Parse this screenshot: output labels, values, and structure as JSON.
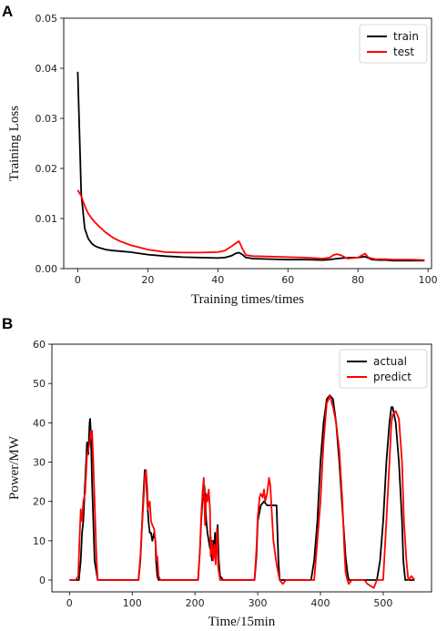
{
  "chart_data": [
    {
      "panel_label": "A",
      "type": "line",
      "xlabel": "Training times/times",
      "ylabel": "Training Loss",
      "xlim": [
        -4,
        101
      ],
      "ylim": [
        0,
        0.05
      ],
      "xticks": [
        0,
        20,
        40,
        60,
        80,
        100
      ],
      "yticks": [
        0.0,
        0.01,
        0.02,
        0.03,
        0.04,
        0.05
      ],
      "ytick_labels": [
        "0.00",
        "0.01",
        "0.02",
        "0.03",
        "0.04",
        "0.05"
      ],
      "legend": "top-right",
      "grid": false,
      "series": [
        {
          "name": "train",
          "color": "#000000",
          "x": [
            0,
            1,
            2,
            3,
            4,
            5,
            6,
            7,
            8,
            10,
            12,
            15,
            20,
            25,
            30,
            35,
            40,
            42,
            44,
            45,
            46,
            47,
            48,
            50,
            55,
            60,
            65,
            70,
            72,
            74,
            76,
            78,
            80,
            82,
            84,
            86,
            88,
            90,
            95,
            99
          ],
          "y": [
            0.0393,
            0.015,
            0.008,
            0.006,
            0.005,
            0.0045,
            0.0042,
            0.004,
            0.0038,
            0.0036,
            0.0035,
            0.0033,
            0.0028,
            0.0025,
            0.0023,
            0.0022,
            0.0021,
            0.0022,
            0.0026,
            0.003,
            0.0032,
            0.0028,
            0.0022,
            0.002,
            0.0019,
            0.0018,
            0.0018,
            0.0017,
            0.0018,
            0.002,
            0.0021,
            0.0022,
            0.0022,
            0.0024,
            0.0018,
            0.0017,
            0.0017,
            0.0016,
            0.0016,
            0.0016
          ]
        },
        {
          "name": "test",
          "color": "#ff0000",
          "x": [
            0,
            1,
            2,
            3,
            4,
            5,
            6,
            8,
            10,
            12,
            15,
            20,
            25,
            30,
            35,
            40,
            42,
            44,
            45,
            46,
            47,
            48,
            50,
            55,
            60,
            65,
            70,
            72,
            73,
            74,
            75,
            77,
            80,
            81,
            82,
            83,
            85,
            88,
            90,
            95,
            99
          ],
          "y": [
            0.0157,
            0.0145,
            0.0125,
            0.011,
            0.01,
            0.0092,
            0.0085,
            0.0072,
            0.0062,
            0.0055,
            0.0047,
            0.0038,
            0.0033,
            0.0032,
            0.0032,
            0.0033,
            0.0036,
            0.0045,
            0.005,
            0.0055,
            0.004,
            0.0027,
            0.0025,
            0.0024,
            0.0023,
            0.0022,
            0.002,
            0.0022,
            0.0027,
            0.0029,
            0.0027,
            0.002,
            0.0022,
            0.0026,
            0.003,
            0.0022,
            0.0019,
            0.0019,
            0.0018,
            0.0018,
            0.0017
          ]
        }
      ]
    },
    {
      "panel_label": "B",
      "type": "line",
      "xlabel": "Time/15min",
      "ylabel": "Power/MW",
      "xlim": [
        -28,
        577
      ],
      "ylim": [
        -3,
        60
      ],
      "xticks": [
        0,
        100,
        200,
        300,
        400,
        500
      ],
      "yticks": [
        0,
        10,
        20,
        30,
        40,
        50,
        60
      ],
      "ytick_labels": [
        "0",
        "10",
        "20",
        "30",
        "40",
        "50",
        "60"
      ],
      "legend": "top-right",
      "grid": false,
      "series": [
        {
          "name": "actual",
          "color": "#000000",
          "x": [
            0,
            15,
            18,
            20,
            22,
            25,
            28,
            30,
            32,
            33,
            34,
            35,
            36,
            38,
            40,
            45,
            100,
            110,
            113,
            115,
            118,
            120,
            122,
            124,
            126,
            128,
            130,
            132,
            135,
            137,
            138,
            140,
            142,
            145,
            200,
            205,
            208,
            210,
            212,
            215,
            218,
            220,
            222,
            224,
            225,
            227,
            229,
            230,
            232,
            234,
            236,
            238,
            240,
            245,
            290,
            295,
            298,
            300,
            305,
            310,
            315,
            320,
            325,
            330,
            333,
            335,
            340,
            385,
            390,
            395,
            400,
            405,
            410,
            415,
            420,
            425,
            430,
            435,
            440,
            443,
            445,
            450,
            490,
            495,
            500,
            505,
            510,
            513,
            515,
            520,
            525,
            530,
            532,
            535,
            550
          ],
          "y": [
            0,
            0,
            5,
            12,
            15,
            25,
            35,
            32,
            40,
            41,
            38,
            32,
            25,
            15,
            5,
            0,
            0,
            0,
            5,
            12,
            22,
            28,
            27,
            20,
            15,
            12,
            12,
            10,
            12,
            10,
            5,
            1,
            0,
            0,
            0,
            0,
            8,
            15,
            20,
            24,
            15,
            12,
            10,
            8,
            11,
            5,
            10,
            6,
            12,
            8,
            14,
            5,
            1,
            0,
            0,
            0,
            6,
            15,
            19,
            20,
            19,
            19,
            19,
            19,
            5,
            0,
            0,
            0,
            5,
            15,
            30,
            40,
            46,
            47,
            46,
            40,
            30,
            18,
            6,
            2,
            0,
            0,
            0,
            5,
            15,
            30,
            40,
            44,
            44,
            40,
            30,
            15,
            5,
            0,
            0
          ]
        },
        {
          "name": "predict",
          "color": "#ff0000",
          "x": [
            0,
            10,
            14,
            16,
            18,
            20,
            22,
            25,
            28,
            30,
            32,
            34,
            35,
            36,
            38,
            40,
            43,
            45,
            100,
            110,
            113,
            115,
            118,
            120,
            122,
            124,
            125,
            126,
            128,
            130,
            132,
            135,
            137,
            139,
            140,
            142,
            145,
            200,
            205,
            208,
            210,
            212,
            214,
            216,
            218,
            220,
            222,
            224,
            225,
            227,
            229,
            231,
            233,
            235,
            237,
            240,
            245,
            260,
            290,
            295,
            298,
            300,
            303,
            305,
            308,
            310,
            312,
            315,
            318,
            320,
            325,
            330,
            335,
            340,
            345,
            385,
            390,
            395,
            400,
            405,
            410,
            413,
            415,
            420,
            425,
            430,
            435,
            438,
            440,
            443,
            445,
            450,
            470,
            475,
            485,
            490,
            495,
            500,
            505,
            510,
            513,
            515,
            520,
            525,
            530,
            533,
            537,
            540,
            545,
            550
          ],
          "y": [
            0,
            0,
            1,
            10,
            18,
            15,
            20,
            22,
            32,
            33,
            35,
            38,
            36,
            38,
            30,
            20,
            6,
            0,
            0,
            0,
            6,
            12,
            20,
            26,
            28,
            23,
            18,
            19,
            20,
            15,
            14,
            13,
            10,
            5,
            6,
            1,
            0,
            0,
            0,
            8,
            16,
            22,
            26,
            14,
            22,
            20,
            23,
            18,
            6,
            10,
            5,
            9,
            4,
            13,
            3,
            0,
            0,
            0,
            0,
            0,
            8,
            16,
            21,
            22,
            21,
            23,
            20,
            22,
            26,
            24,
            10,
            4,
            0,
            -1,
            0,
            0,
            0,
            10,
            20,
            35,
            45,
            46,
            47,
            44,
            40,
            33,
            20,
            8,
            2,
            0,
            -1,
            0,
            0,
            -1,
            -2,
            0,
            0,
            0,
            15,
            30,
            40,
            42,
            43,
            41,
            30,
            15,
            5,
            0,
            1,
            0
          ]
        }
      ]
    }
  ]
}
